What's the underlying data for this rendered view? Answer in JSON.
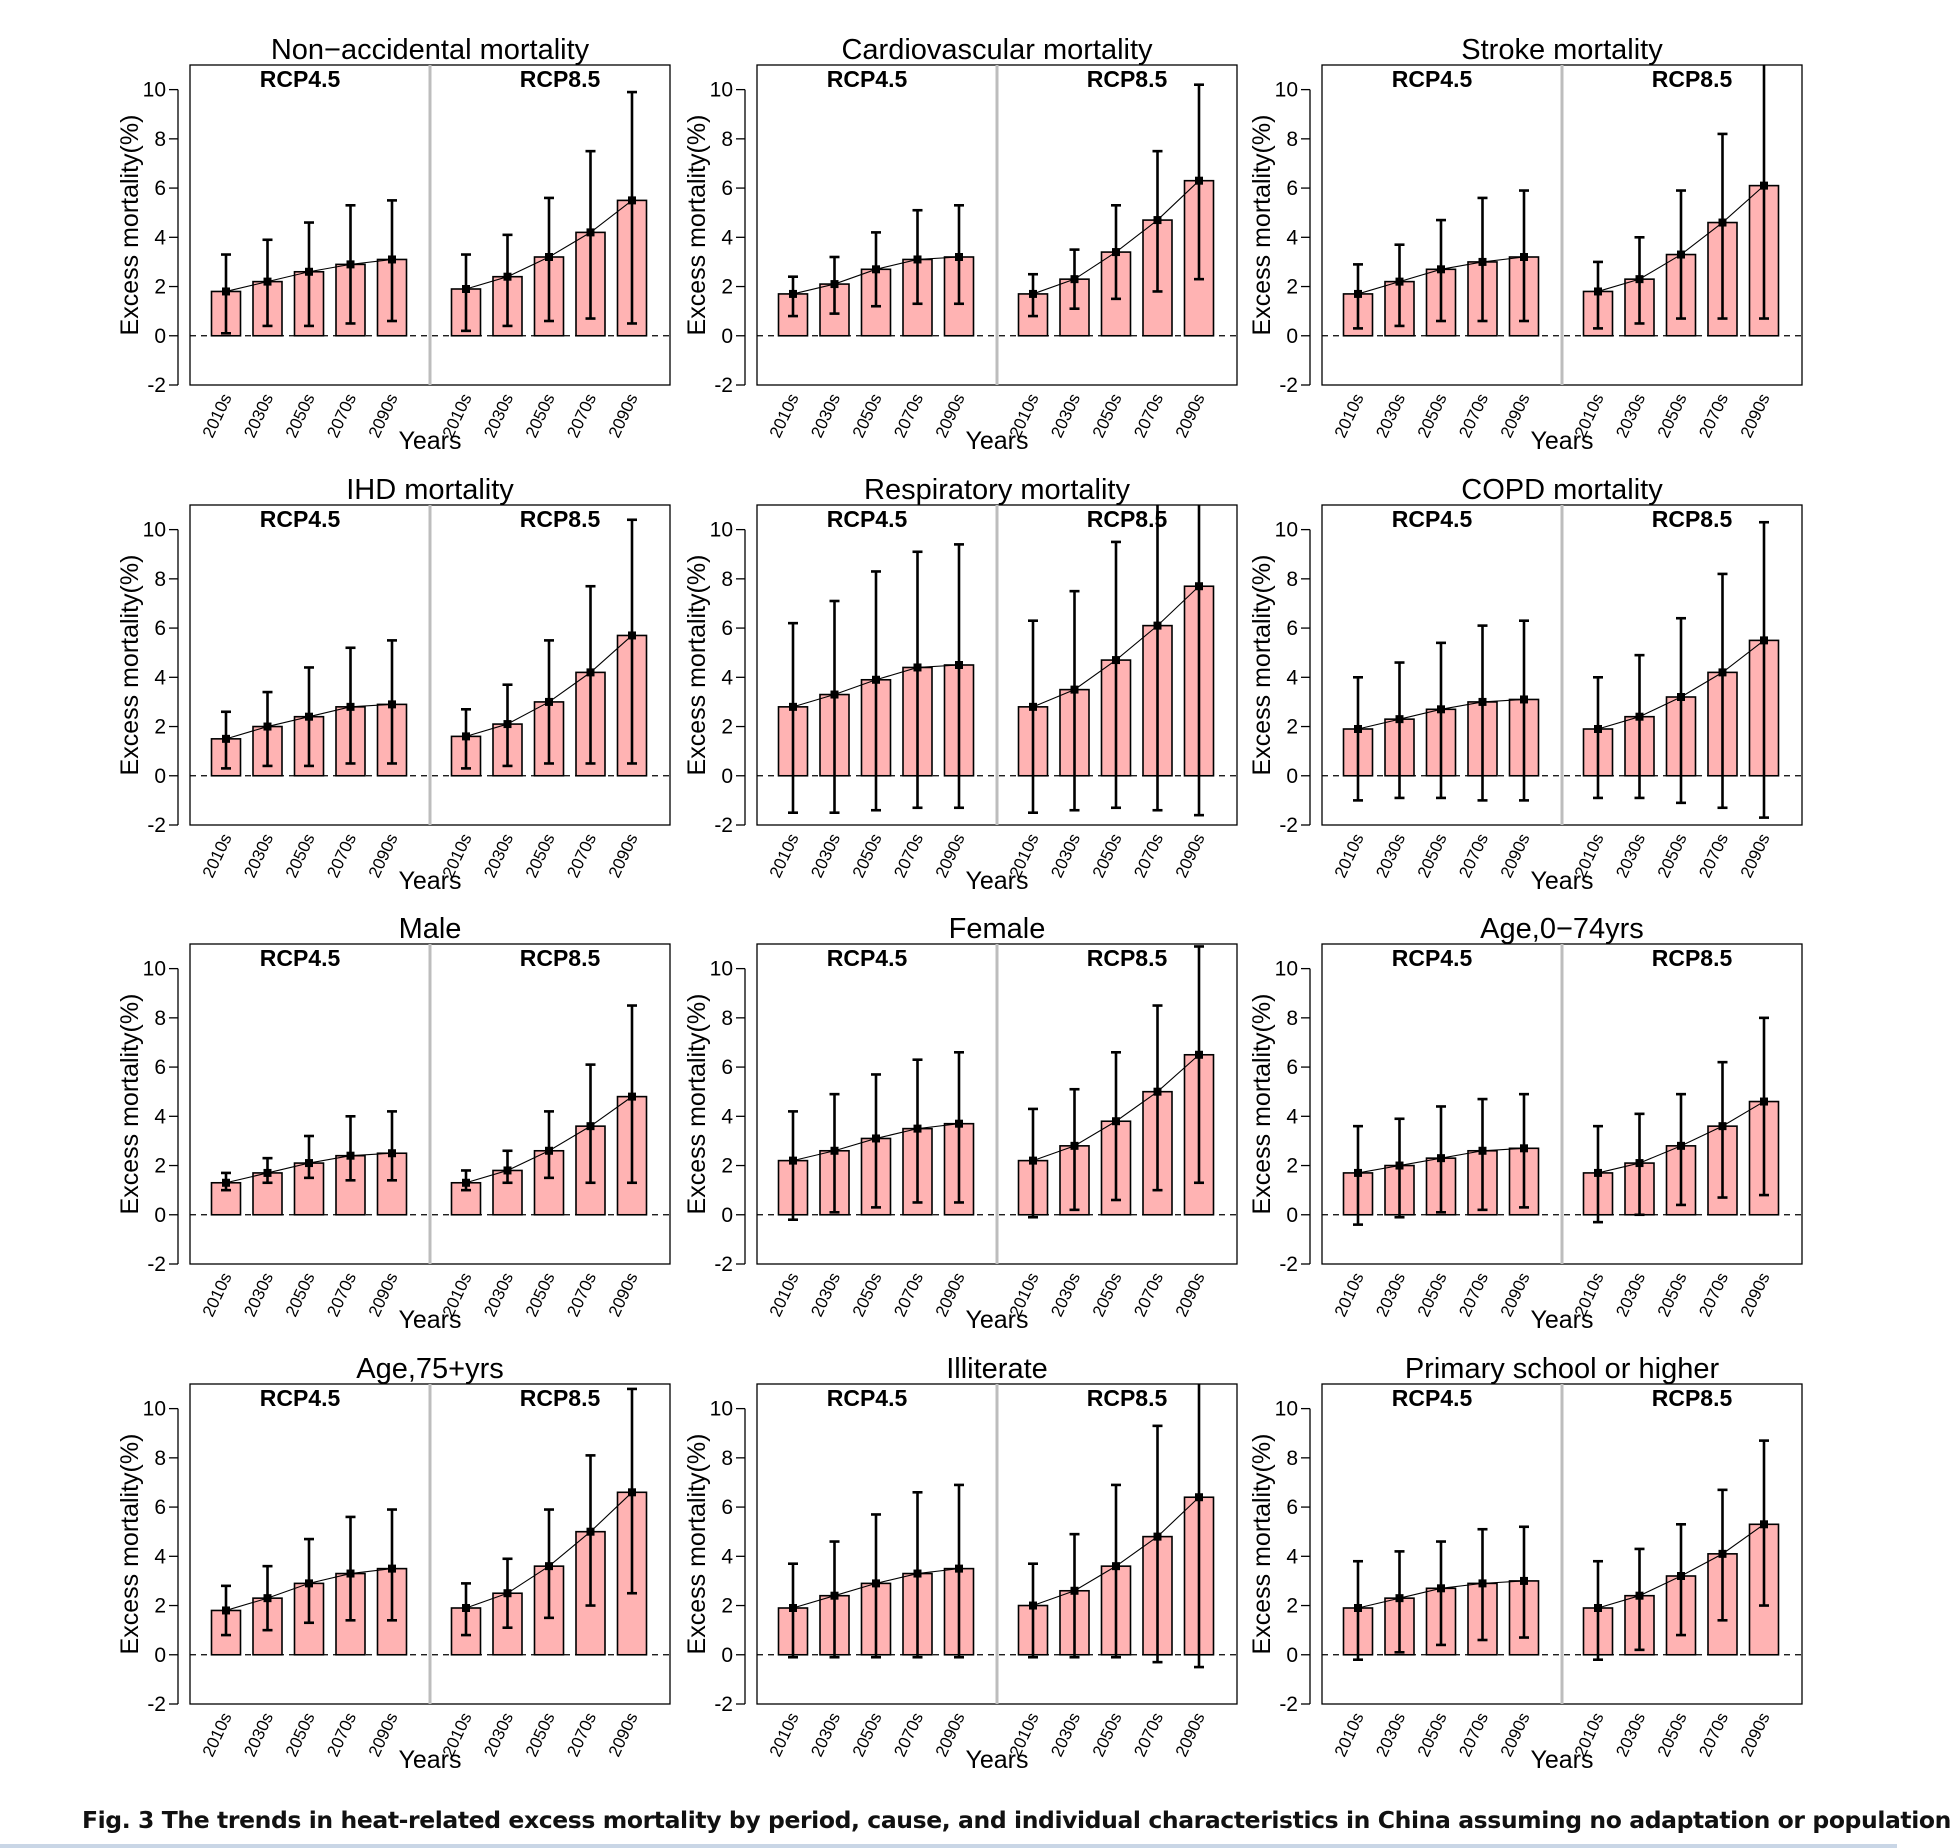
{
  "colors": {
    "bar_fill": "#ffb3b3",
    "bar_stroke": "#000000",
    "frame": "#000000",
    "divider": "#bdbdbd",
    "text": "#000000"
  },
  "caption": "Fig. 3 The trends in heat-related excess mortality by period, cause, and individual characteristics in China assuming no adaptation or population",
  "chart_data": [
    {
      "type": "bar",
      "title": "Non−accidental mortality",
      "xlabel": "Years",
      "ylabel": "Excess mortality(%)",
      "scenarios": [
        "RCP4.5",
        "RCP8.5"
      ],
      "categories": [
        "2010s",
        "2030s",
        "2050s",
        "2070s",
        "2090s"
      ],
      "ylim": [
        -2,
        11
      ],
      "yticks": [
        -2,
        0,
        2,
        4,
        6,
        8,
        10
      ],
      "series": [
        {
          "name": "RCP4.5",
          "values": [
            1.8,
            2.2,
            2.6,
            2.9,
            3.1
          ],
          "lower": [
            0.1,
            0.4,
            0.4,
            0.5,
            0.6
          ],
          "upper": [
            3.3,
            3.9,
            4.6,
            5.3,
            5.5
          ]
        },
        {
          "name": "RCP8.5",
          "values": [
            1.9,
            2.4,
            3.2,
            4.2,
            5.5
          ],
          "lower": [
            0.2,
            0.4,
            0.6,
            0.7,
            0.5
          ],
          "upper": [
            3.3,
            4.1,
            5.6,
            7.5,
            9.9
          ]
        }
      ]
    },
    {
      "type": "bar",
      "title": "Cardiovascular mortality",
      "xlabel": "Years",
      "ylabel": "Excess mortality(%)",
      "scenarios": [
        "RCP4.5",
        "RCP8.5"
      ],
      "categories": [
        "2010s",
        "2030s",
        "2050s",
        "2070s",
        "2090s"
      ],
      "ylim": [
        -2,
        11
      ],
      "yticks": [
        -2,
        0,
        2,
        4,
        6,
        8,
        10
      ],
      "series": [
        {
          "name": "RCP4.5",
          "values": [
            1.7,
            2.1,
            2.7,
            3.1,
            3.2
          ],
          "lower": [
            0.8,
            0.9,
            1.2,
            1.3,
            1.3
          ],
          "upper": [
            2.4,
            3.2,
            4.2,
            5.1,
            5.3
          ]
        },
        {
          "name": "RCP8.5",
          "values": [
            1.7,
            2.3,
            3.4,
            4.7,
            6.3
          ],
          "lower": [
            0.8,
            1.1,
            1.5,
            1.8,
            2.3
          ],
          "upper": [
            2.5,
            3.5,
            5.3,
            7.5,
            10.2
          ]
        }
      ]
    },
    {
      "type": "bar",
      "title": "Stroke mortality",
      "xlabel": "Years",
      "ylabel": "Excess mortality(%)",
      "scenarios": [
        "RCP4.5",
        "RCP8.5"
      ],
      "categories": [
        "2010s",
        "2030s",
        "2050s",
        "2070s",
        "2090s"
      ],
      "ylim": [
        -2,
        11
      ],
      "yticks": [
        -2,
        0,
        2,
        4,
        6,
        8,
        10
      ],
      "series": [
        {
          "name": "RCP4.5",
          "values": [
            1.7,
            2.2,
            2.7,
            3.0,
            3.2
          ],
          "lower": [
            0.3,
            0.4,
            0.6,
            0.6,
            0.6
          ],
          "upper": [
            2.9,
            3.7,
            4.7,
            5.6,
            5.9
          ]
        },
        {
          "name": "RCP8.5",
          "values": [
            1.8,
            2.3,
            3.3,
            4.6,
            6.1
          ],
          "lower": [
            0.3,
            0.5,
            0.7,
            0.7,
            0.7
          ],
          "upper": [
            3.0,
            4.0,
            5.9,
            8.2,
            11.0
          ]
        }
      ]
    },
    {
      "type": "bar",
      "title": "IHD mortality",
      "xlabel": "Years",
      "ylabel": "Excess mortality(%)",
      "scenarios": [
        "RCP4.5",
        "RCP8.5"
      ],
      "categories": [
        "2010s",
        "2030s",
        "2050s",
        "2070s",
        "2090s"
      ],
      "ylim": [
        -2,
        11
      ],
      "yticks": [
        -2,
        0,
        2,
        4,
        6,
        8,
        10
      ],
      "series": [
        {
          "name": "RCP4.5",
          "values": [
            1.5,
            2.0,
            2.4,
            2.8,
            2.9
          ],
          "lower": [
            0.3,
            0.4,
            0.4,
            0.5,
            0.5
          ],
          "upper": [
            2.6,
            3.4,
            4.4,
            5.2,
            5.5
          ]
        },
        {
          "name": "RCP8.5",
          "values": [
            1.6,
            2.1,
            3.0,
            4.2,
            5.7
          ],
          "lower": [
            0.3,
            0.4,
            0.5,
            0.5,
            0.5
          ],
          "upper": [
            2.7,
            3.7,
            5.5,
            7.7,
            10.4
          ]
        }
      ]
    },
    {
      "type": "bar",
      "title": "Respiratory mortality",
      "xlabel": "Years",
      "ylabel": "Excess mortality(%)",
      "scenarios": [
        "RCP4.5",
        "RCP8.5"
      ],
      "categories": [
        "2010s",
        "2030s",
        "2050s",
        "2070s",
        "2090s"
      ],
      "ylim": [
        -2,
        11
      ],
      "yticks": [
        -2,
        0,
        2,
        4,
        6,
        8,
        10
      ],
      "series": [
        {
          "name": "RCP4.5",
          "values": [
            2.8,
            3.3,
            3.9,
            4.4,
            4.5
          ],
          "lower": [
            -1.5,
            -1.5,
            -1.4,
            -1.3,
            -1.3
          ],
          "upper": [
            6.2,
            7.1,
            8.3,
            9.1,
            9.4
          ]
        },
        {
          "name": "RCP8.5",
          "values": [
            2.8,
            3.5,
            4.7,
            6.1,
            7.7
          ],
          "lower": [
            -1.5,
            -1.4,
            -1.3,
            -1.4,
            -1.6
          ],
          "upper": [
            6.3,
            7.5,
            9.5,
            11.0,
            11.0
          ]
        }
      ]
    },
    {
      "type": "bar",
      "title": "COPD mortality",
      "xlabel": "Years",
      "ylabel": "Excess mortality(%)",
      "scenarios": [
        "RCP4.5",
        "RCP8.5"
      ],
      "categories": [
        "2010s",
        "2030s",
        "2050s",
        "2070s",
        "2090s"
      ],
      "ylim": [
        -2,
        11
      ],
      "yticks": [
        -2,
        0,
        2,
        4,
        6,
        8,
        10
      ],
      "series": [
        {
          "name": "RCP4.5",
          "values": [
            1.9,
            2.3,
            2.7,
            3.0,
            3.1
          ],
          "lower": [
            -1.0,
            -0.9,
            -0.9,
            -1.0,
            -1.0
          ],
          "upper": [
            4.0,
            4.6,
            5.4,
            6.1,
            6.3
          ]
        },
        {
          "name": "RCP8.5",
          "values": [
            1.9,
            2.4,
            3.2,
            4.2,
            5.5
          ],
          "lower": [
            -0.9,
            -0.9,
            -1.1,
            -1.3,
            -1.7
          ],
          "upper": [
            4.0,
            4.9,
            6.4,
            8.2,
            10.3
          ]
        }
      ]
    },
    {
      "type": "bar",
      "title": "Male",
      "xlabel": "Years",
      "ylabel": "Excess mortality(%)",
      "scenarios": [
        "RCP4.5",
        "RCP8.5"
      ],
      "categories": [
        "2010s",
        "2030s",
        "2050s",
        "2070s",
        "2090s"
      ],
      "ylim": [
        -2,
        11
      ],
      "yticks": [
        -2,
        0,
        2,
        4,
        6,
        8,
        10
      ],
      "series": [
        {
          "name": "RCP4.5",
          "values": [
            1.3,
            1.7,
            2.1,
            2.4,
            2.5
          ],
          "lower": [
            1.0,
            1.3,
            1.5,
            1.4,
            1.4
          ],
          "upper": [
            1.7,
            2.3,
            3.2,
            4.0,
            4.2
          ]
        },
        {
          "name": "RCP8.5",
          "values": [
            1.3,
            1.8,
            2.6,
            3.6,
            4.8
          ],
          "lower": [
            1.0,
            1.3,
            1.5,
            1.3,
            1.3
          ],
          "upper": [
            1.8,
            2.6,
            4.2,
            6.1,
            8.5
          ]
        }
      ]
    },
    {
      "type": "bar",
      "title": "Female",
      "xlabel": "Years",
      "ylabel": "Excess mortality(%)",
      "scenarios": [
        "RCP4.5",
        "RCP8.5"
      ],
      "categories": [
        "2010s",
        "2030s",
        "2050s",
        "2070s",
        "2090s"
      ],
      "ylim": [
        -2,
        11
      ],
      "yticks": [
        -2,
        0,
        2,
        4,
        6,
        8,
        10
      ],
      "series": [
        {
          "name": "RCP4.5",
          "values": [
            2.2,
            2.6,
            3.1,
            3.5,
            3.7
          ],
          "lower": [
            -0.2,
            0.1,
            0.3,
            0.5,
            0.5
          ],
          "upper": [
            4.2,
            4.9,
            5.7,
            6.3,
            6.6
          ]
        },
        {
          "name": "RCP8.5",
          "values": [
            2.2,
            2.8,
            3.8,
            5.0,
            6.5
          ],
          "lower": [
            -0.1,
            0.2,
            0.6,
            1.0,
            1.3
          ],
          "upper": [
            4.3,
            5.1,
            6.6,
            8.5,
            10.9
          ]
        }
      ]
    },
    {
      "type": "bar",
      "title": "Age,0−74yrs",
      "xlabel": "Years",
      "ylabel": "Excess mortality(%)",
      "scenarios": [
        "RCP4.5",
        "RCP8.5"
      ],
      "categories": [
        "2010s",
        "2030s",
        "2050s",
        "2070s",
        "2090s"
      ],
      "ylim": [
        -2,
        11
      ],
      "yticks": [
        -2,
        0,
        2,
        4,
        6,
        8,
        10
      ],
      "series": [
        {
          "name": "RCP4.5",
          "values": [
            1.7,
            2.0,
            2.3,
            2.6,
            2.7
          ],
          "lower": [
            -0.4,
            -0.1,
            0.1,
            0.2,
            0.3
          ],
          "upper": [
            3.6,
            3.9,
            4.4,
            4.7,
            4.9
          ]
        },
        {
          "name": "RCP8.5",
          "values": [
            1.7,
            2.1,
            2.8,
            3.6,
            4.6
          ],
          "lower": [
            -0.3,
            0.0,
            0.4,
            0.7,
            0.8
          ],
          "upper": [
            3.6,
            4.1,
            4.9,
            6.2,
            8.0
          ]
        }
      ]
    },
    {
      "type": "bar",
      "title": "Age,75+yrs",
      "xlabel": "Years",
      "ylabel": "Excess mortality(%)",
      "scenarios": [
        "RCP4.5",
        "RCP8.5"
      ],
      "categories": [
        "2010s",
        "2030s",
        "2050s",
        "2070s",
        "2090s"
      ],
      "ylim": [
        -2,
        11
      ],
      "yticks": [
        -2,
        0,
        2,
        4,
        6,
        8,
        10
      ],
      "series": [
        {
          "name": "RCP4.5",
          "values": [
            1.8,
            2.3,
            2.9,
            3.3,
            3.5
          ],
          "lower": [
            0.8,
            1.0,
            1.3,
            1.4,
            1.4
          ],
          "upper": [
            2.8,
            3.6,
            4.7,
            5.6,
            5.9
          ]
        },
        {
          "name": "RCP8.5",
          "values": [
            1.9,
            2.5,
            3.6,
            5.0,
            6.6
          ],
          "lower": [
            0.8,
            1.1,
            1.5,
            2.0,
            2.5
          ],
          "upper": [
            2.9,
            3.9,
            5.9,
            8.1,
            10.8
          ]
        }
      ]
    },
    {
      "type": "bar",
      "title": "Illiterate",
      "xlabel": "Years",
      "ylabel": "Excess mortality(%)",
      "scenarios": [
        "RCP4.5",
        "RCP8.5"
      ],
      "categories": [
        "2010s",
        "2030s",
        "2050s",
        "2070s",
        "2090s"
      ],
      "ylim": [
        -2,
        11
      ],
      "yticks": [
        -2,
        0,
        2,
        4,
        6,
        8,
        10
      ],
      "series": [
        {
          "name": "RCP4.5",
          "values": [
            1.9,
            2.4,
            2.9,
            3.3,
            3.5
          ],
          "lower": [
            -0.1,
            -0.1,
            -0.1,
            -0.1,
            -0.1
          ],
          "upper": [
            3.7,
            4.6,
            5.7,
            6.6,
            6.9
          ]
        },
        {
          "name": "RCP8.5",
          "values": [
            2.0,
            2.6,
            3.6,
            4.8,
            6.4
          ],
          "lower": [
            -0.1,
            -0.1,
            -0.1,
            -0.3,
            -0.5
          ],
          "upper": [
            3.7,
            4.9,
            6.9,
            9.3,
            11.0
          ]
        }
      ]
    },
    {
      "type": "bar",
      "title": "Primary school or higher",
      "xlabel": "Years",
      "ylabel": "Excess mortality(%)",
      "scenarios": [
        "RCP4.5",
        "RCP8.5"
      ],
      "categories": [
        "2010s",
        "2030s",
        "2050s",
        "2070s",
        "2090s"
      ],
      "ylim": [
        -2,
        11
      ],
      "yticks": [
        -2,
        0,
        2,
        4,
        6,
        8,
        10
      ],
      "series": [
        {
          "name": "RCP4.5",
          "values": [
            1.9,
            2.3,
            2.7,
            2.9,
            3.0
          ],
          "lower": [
            -0.2,
            0.1,
            0.4,
            0.6,
            0.7
          ],
          "upper": [
            3.8,
            4.2,
            4.6,
            5.1,
            5.2
          ]
        },
        {
          "name": "RCP8.5",
          "values": [
            1.9,
            2.4,
            3.2,
            4.1,
            5.3
          ],
          "lower": [
            -0.2,
            0.2,
            0.8,
            1.4,
            2.0
          ],
          "upper": [
            3.8,
            4.3,
            5.3,
            6.7,
            8.7
          ]
        }
      ]
    }
  ]
}
